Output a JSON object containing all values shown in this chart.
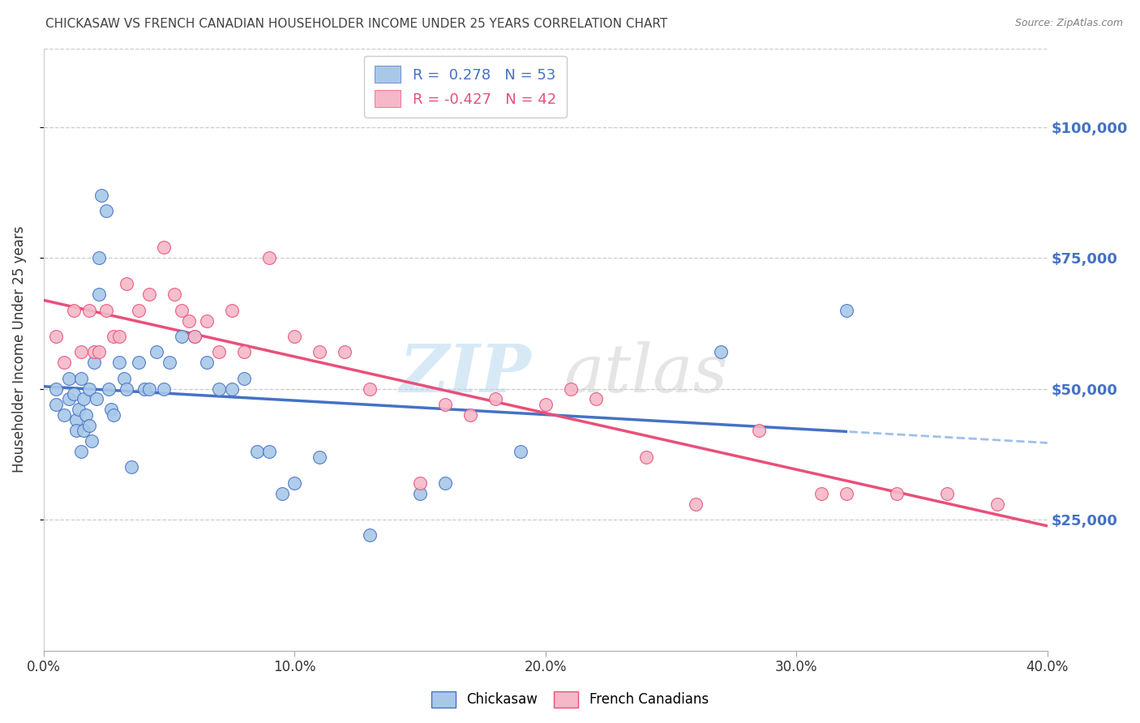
{
  "title": "CHICKASAW VS FRENCH CANADIAN HOUSEHOLDER INCOME UNDER 25 YEARS CORRELATION CHART",
  "source": "Source: ZipAtlas.com",
  "xlabel_ticks": [
    "0.0%",
    "10.0%",
    "20.0%",
    "30.0%",
    "40.0%"
  ],
  "xlabel_tick_vals": [
    0.0,
    0.1,
    0.2,
    0.3,
    0.4
  ],
  "ylabel": "Householder Income Under 25 years",
  "ylabel_right_ticks": [
    "$25,000",
    "$50,000",
    "$75,000",
    "$100,000"
  ],
  "ylabel_right_vals": [
    25000,
    50000,
    75000,
    100000
  ],
  "xlim": [
    0.0,
    0.4
  ],
  "ylim": [
    0,
    115000
  ],
  "R_chickasaw": 0.278,
  "N_chickasaw": 53,
  "R_french": -0.427,
  "N_french": 42,
  "color_chickasaw": "#a8c8e8",
  "color_french": "#f4b8c8",
  "color_line_chickasaw": "#4472c4",
  "color_line_french": "#e8507a",
  "legend_label_chickasaw": "Chickasaw",
  "legend_label_french": "French Canadians",
  "chickasaw_x": [
    0.005,
    0.005,
    0.008,
    0.01,
    0.01,
    0.012,
    0.013,
    0.013,
    0.014,
    0.015,
    0.015,
    0.016,
    0.016,
    0.017,
    0.018,
    0.018,
    0.019,
    0.02,
    0.021,
    0.022,
    0.022,
    0.023,
    0.025,
    0.026,
    0.027,
    0.028,
    0.03,
    0.032,
    0.033,
    0.035,
    0.038,
    0.04,
    0.042,
    0.045,
    0.048,
    0.05,
    0.055,
    0.06,
    0.065,
    0.07,
    0.075,
    0.08,
    0.085,
    0.09,
    0.095,
    0.1,
    0.11,
    0.13,
    0.15,
    0.16,
    0.19,
    0.27,
    0.32
  ],
  "chickasaw_y": [
    50000,
    47000,
    45000,
    52000,
    48000,
    49000,
    44000,
    42000,
    46000,
    52000,
    38000,
    48000,
    42000,
    45000,
    50000,
    43000,
    40000,
    55000,
    48000,
    68000,
    75000,
    87000,
    84000,
    50000,
    46000,
    45000,
    55000,
    52000,
    50000,
    35000,
    55000,
    50000,
    50000,
    57000,
    50000,
    55000,
    60000,
    60000,
    55000,
    50000,
    50000,
    52000,
    38000,
    38000,
    30000,
    32000,
    37000,
    22000,
    30000,
    32000,
    38000,
    57000,
    65000
  ],
  "french_x": [
    0.005,
    0.008,
    0.012,
    0.015,
    0.018,
    0.02,
    0.022,
    0.025,
    0.028,
    0.03,
    0.033,
    0.038,
    0.042,
    0.048,
    0.052,
    0.055,
    0.058,
    0.06,
    0.065,
    0.07,
    0.075,
    0.08,
    0.09,
    0.1,
    0.11,
    0.12,
    0.13,
    0.15,
    0.16,
    0.17,
    0.18,
    0.2,
    0.21,
    0.22,
    0.24,
    0.26,
    0.285,
    0.31,
    0.32,
    0.34,
    0.36,
    0.38
  ],
  "french_y": [
    60000,
    55000,
    65000,
    57000,
    65000,
    57000,
    57000,
    65000,
    60000,
    60000,
    70000,
    65000,
    68000,
    77000,
    68000,
    65000,
    63000,
    60000,
    63000,
    57000,
    65000,
    57000,
    75000,
    60000,
    57000,
    57000,
    50000,
    32000,
    47000,
    45000,
    48000,
    47000,
    50000,
    48000,
    37000,
    28000,
    42000,
    30000,
    30000,
    30000,
    30000,
    28000
  ]
}
